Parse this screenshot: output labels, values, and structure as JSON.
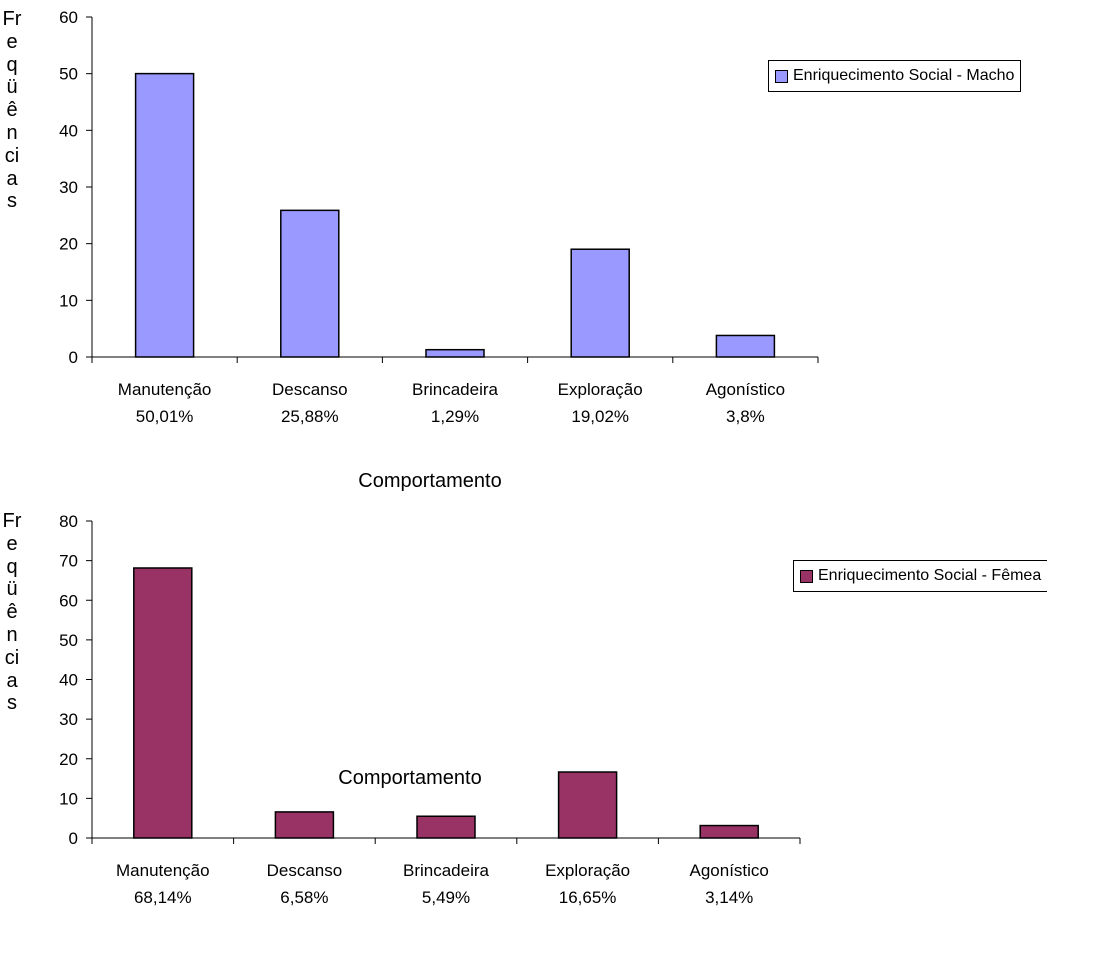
{
  "chart_data": [
    {
      "type": "bar",
      "categories": [
        "Manutenção",
        "Descanso",
        "Brincadeira",
        "Exploração",
        "Agonístico"
      ],
      "category_percent_labels": [
        "50,01%",
        "25,88%",
        "1,29%",
        "19,02%",
        "3,8%"
      ],
      "series": [
        {
          "name": "Enriquecimento Social - Macho",
          "values": [
            50.01,
            25.88,
            1.29,
            19.02,
            3.8
          ],
          "color": "#9999ff"
        }
      ],
      "xlabel": "Comportamento",
      "ylabel": "Freqüências",
      "ylim": [
        0,
        60
      ],
      "yticks": [
        "0",
        "10",
        "20",
        "30",
        "40",
        "50",
        "60"
      ],
      "grid": false,
      "legend_position": "top-right"
    },
    {
      "type": "bar",
      "categories": [
        "Manutenção",
        "Descanso",
        "Brincadeira",
        "Exploração",
        "Agonístico"
      ],
      "category_percent_labels": [
        "68,14%",
        "6,58%",
        "5,49%",
        "16,65%",
        "3,14%"
      ],
      "series": [
        {
          "name": "Enriquecimento Social - Fêmea",
          "values": [
            68.14,
            6.58,
            5.49,
            16.65,
            3.14
          ],
          "color": "#993366"
        }
      ],
      "xlabel": "Comportamento",
      "ylabel": "Freqüências",
      "ylim": [
        0,
        80
      ],
      "yticks": [
        "0",
        "10",
        "20",
        "30",
        "40",
        "50",
        "60",
        "70",
        "80"
      ],
      "grid": false,
      "legend_position": "top-right"
    }
  ]
}
